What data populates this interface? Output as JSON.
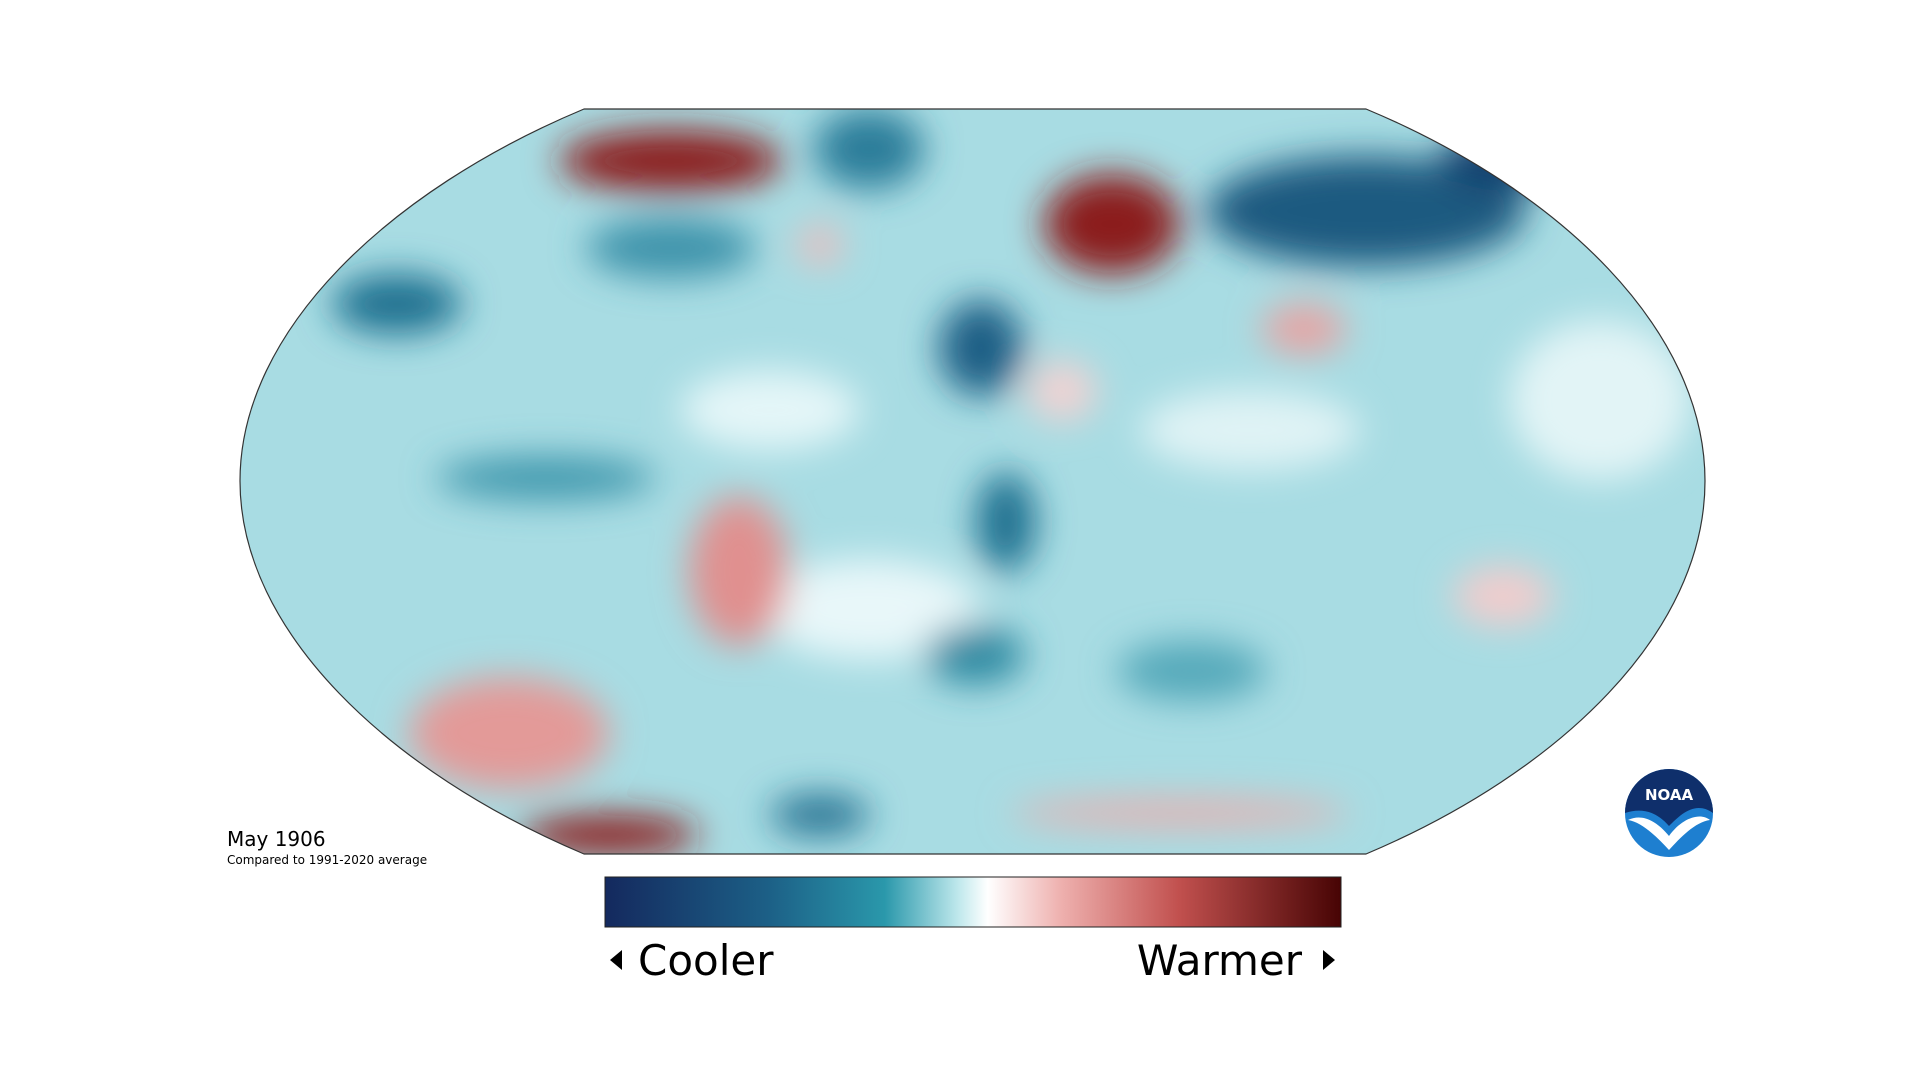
{
  "title": "May 1906",
  "subtitle": "Compared to 1991-2020 average",
  "legend": {
    "low": "Cooler",
    "high": "Warmer"
  },
  "logo": "NOAA"
}
